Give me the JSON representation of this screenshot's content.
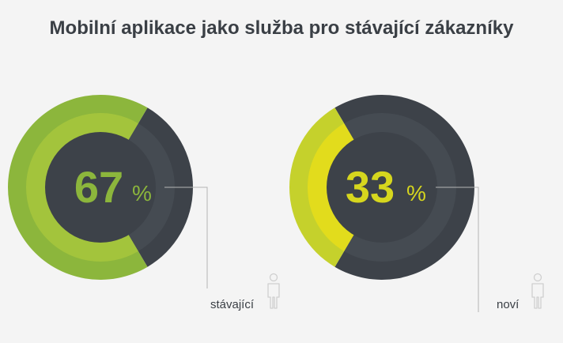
{
  "title": "Mobilní aplikace jako služba pro stávající zákazníky",
  "chart_data": {
    "type": "pie",
    "title": "Mobilní aplikace jako služba pro stávající zákazníky",
    "unit": "%",
    "series": [
      {
        "label": "stávající",
        "value": 67
      },
      {
        "label": "noví",
        "value": 33
      }
    ]
  },
  "charts": [
    {
      "value": "67",
      "unit": "%",
      "label": "stávající",
      "colors": {
        "outer": "#8cb63c",
        "inner": "#a3c43c",
        "number": "#8cb63c"
      },
      "icon": "person-icon"
    },
    {
      "value": "33",
      "unit": "%",
      "label": "noví",
      "colors": {
        "outer": "#c5d12c",
        "inner": "#e2dc1c",
        "number": "#d6d61e"
      },
      "icon": "person-icon"
    }
  ],
  "colors": {
    "dark_outer": "#3d4249",
    "dark_inner": "#454b52",
    "text": "#3a3f45",
    "line": "#b5b5b5",
    "icon": "#cfcfcf"
  }
}
